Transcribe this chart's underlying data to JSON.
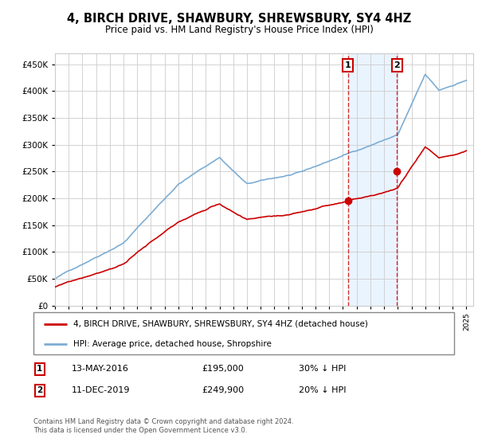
{
  "title": "4, BIRCH DRIVE, SHAWBURY, SHREWSBURY, SY4 4HZ",
  "subtitle": "Price paid vs. HM Land Registry's House Price Index (HPI)",
  "hpi_label": "HPI: Average price, detached house, Shropshire",
  "price_label": "4, BIRCH DRIVE, SHAWBURY, SHREWSBURY, SY4 4HZ (detached house)",
  "footer": "Contains HM Land Registry data © Crown copyright and database right 2024.\nThis data is licensed under the Open Government Licence v3.0.",
  "sale1_date": "13-MAY-2016",
  "sale1_price": 195000,
  "sale1_hpi": "30% ↓ HPI",
  "sale2_date": "11-DEC-2019",
  "sale2_price": 249900,
  "sale2_hpi": "20% ↓ HPI",
  "ylim": [
    0,
    470000
  ],
  "xlim_start": 1995.0,
  "xlim_end": 2025.5,
  "sale1_x": 2016.36,
  "sale2_x": 2019.94,
  "background_color": "#ffffff",
  "plot_bg_color": "#ffffff",
  "grid_color": "#cccccc",
  "hpi_color": "#7dadd4",
  "price_color": "#cc0000",
  "vline_color": "#cc0000",
  "shade_color": "#ddeeff",
  "annotation_box_color": "#cc0000"
}
